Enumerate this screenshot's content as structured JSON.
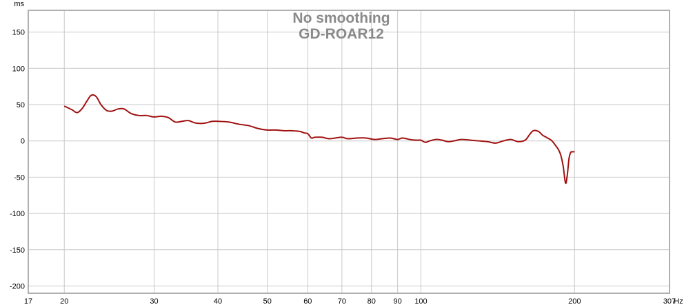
{
  "chart_data": {
    "type": "line",
    "title": "No smoothing",
    "subtitle": "GD-ROAR12",
    "ylabel": "ms",
    "xlabel": "Hz",
    "x_scale": "log",
    "xlim": [
      17,
      307
    ],
    "ylim": [
      -210,
      180
    ],
    "x_ticks": [
      17,
      20,
      30,
      40,
      50,
      60,
      70,
      80,
      90,
      100,
      200,
      307
    ],
    "x_tick_labels": [
      "17",
      "20",
      "30",
      "40",
      "50",
      "60",
      "70",
      "80",
      "90",
      "100",
      "200",
      "307"
    ],
    "y_ticks": [
      150,
      100,
      50,
      0,
      -50,
      -100,
      -150,
      -200
    ],
    "y_tick_labels": [
      "150",
      "100",
      "50",
      "0",
      "-50",
      "-100",
      "-150",
      "-200"
    ],
    "grid": true,
    "line_color": "#a01010",
    "series": [
      {
        "x": [
          20,
          20.7,
          21.2,
          21.7,
          22.2,
          22.6,
          23.1,
          23.6,
          24.2,
          24.8,
          25.5,
          26.2,
          27.0,
          28.0,
          29.0,
          30.0,
          31.0,
          32.0,
          33.0,
          34.0,
          35.0,
          36.0,
          37.0,
          38.0,
          39.0,
          40.0,
          42.0,
          44.0,
          46.0,
          48.0,
          50.0,
          52.0,
          54.0,
          56.0,
          58.0,
          59.0,
          60.0,
          61.0,
          62.0,
          64.0,
          66.0,
          68.0,
          70.0,
          72.0,
          75.0,
          78.0,
          81.0,
          84.0,
          87.0,
          90.0,
          92.0,
          95.0,
          98.0,
          100.0,
          102.0,
          104.0,
          107.0,
          110.0,
          113.0,
          116.0,
          120.0,
          125.0,
          130.0,
          135.0,
          140.0,
          145.0,
          150.0,
          155.0,
          160.0,
          163.0,
          166.0,
          170.0,
          173.0,
          176.0,
          180.0,
          183.0,
          186.0,
          188.0,
          190.0,
          192.0,
          193.5,
          195.0,
          196.5,
          198.0,
          200.0
        ],
        "y": [
          48,
          43,
          39,
          45,
          56,
          63,
          61,
          50,
          42,
          41,
          44,
          44,
          38,
          35,
          35,
          33,
          34,
          32,
          26,
          27,
          28,
          25,
          24,
          25,
          27,
          27,
          26,
          23,
          21,
          17,
          15,
          15,
          14,
          14,
          13,
          11,
          10,
          4,
          5,
          5,
          3,
          4,
          5,
          3,
          4,
          4,
          2,
          3,
          4,
          2,
          4,
          2,
          1,
          1,
          -2,
          0,
          2,
          1,
          -1,
          0,
          2,
          1,
          0,
          -1,
          -3,
          0,
          2,
          -1,
          1,
          8,
          14,
          13,
          8,
          5,
          1,
          -5,
          -12,
          -20,
          -35,
          -58,
          -48,
          -25,
          -16,
          -15,
          -15
        ]
      }
    ]
  }
}
